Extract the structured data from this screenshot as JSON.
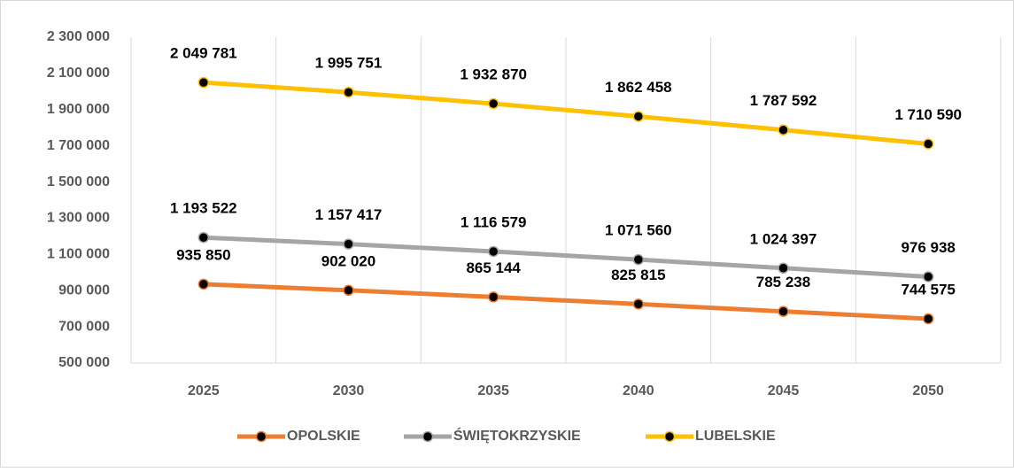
{
  "chart_data": {
    "type": "line",
    "categories": [
      "2025",
      "2030",
      "2035",
      "2040",
      "2045",
      "2050"
    ],
    "series": [
      {
        "name": "OPOLSKIE",
        "color": "#ed7d31",
        "values": [
          935850,
          902020,
          865144,
          825815,
          785238,
          744575
        ],
        "value_labels": [
          "935 850",
          "902 020",
          "865 144",
          "825 815",
          "785 238",
          "744 575"
        ]
      },
      {
        "name": "ŚWIĘTOKRZYSKIE",
        "color": "#a5a5a5",
        "values": [
          1193522,
          1157417,
          1116579,
          1071560,
          1024397,
          976938
        ],
        "value_labels": [
          "1 193 522",
          "1 157 417",
          "1 116 579",
          "1 071 560",
          "1 024 397",
          "976 938"
        ]
      },
      {
        "name": "LUBELSKIE",
        "color": "#ffc000",
        "values": [
          2049781,
          1995751,
          1932870,
          1862458,
          1787592,
          1710590
        ],
        "value_labels": [
          "2 049 781",
          "1 995 751",
          "1 932 870",
          "1 862 458",
          "1 787 592",
          "1 710 590"
        ]
      }
    ],
    "ylim": [
      500000,
      2300000
    ],
    "yticks": [
      {
        "value": 500000,
        "label": "500 000"
      },
      {
        "value": 700000,
        "label": "700 000"
      },
      {
        "value": 900000,
        "label": "900 000"
      },
      {
        "value": 1100000,
        "label": "1 100 000"
      },
      {
        "value": 1300000,
        "label": "1 300 000"
      },
      {
        "value": 1500000,
        "label": "1 500 000"
      },
      {
        "value": 1700000,
        "label": "1 700 000"
      },
      {
        "value": 1900000,
        "label": "1 900 000"
      },
      {
        "value": 2100000,
        "label": "2 100 000"
      },
      {
        "value": 2300000,
        "label": "2 300 000"
      }
    ],
    "legend": "bottom"
  }
}
